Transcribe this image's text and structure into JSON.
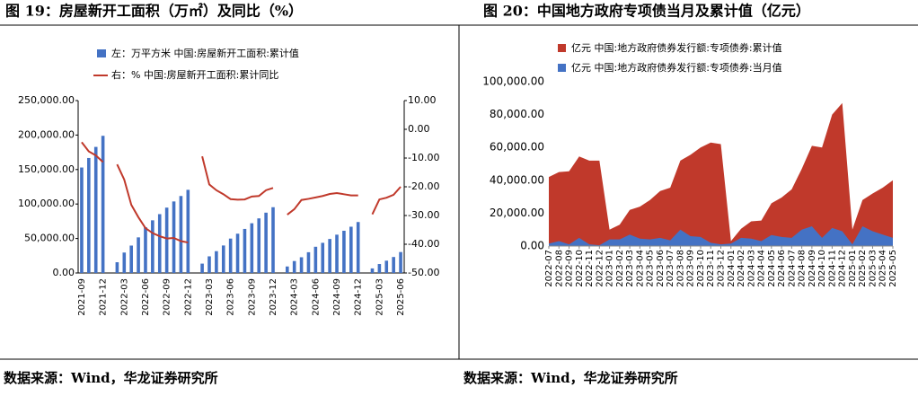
{
  "chart_data": [
    {
      "type": "bar",
      "title": "图 19：房屋新开工面积（万㎡）及同比（%）",
      "source": "数据来源：Wind，华龙证券研究所",
      "categories": [
        "2021-09",
        null,
        null,
        "2021-12",
        null,
        null,
        "2022-03",
        null,
        null,
        "2022-06",
        null,
        null,
        "2022-09",
        null,
        null,
        "2022-12",
        null,
        null,
        "2023-03",
        null,
        null,
        "2023-06",
        null,
        null,
        "2023-09",
        null,
        null,
        "2023-12",
        null,
        null,
        "2024-03",
        null,
        null,
        "2024-06",
        null,
        null,
        "2024-09",
        null,
        null,
        "2024-12",
        null,
        null,
        "2025-03",
        null,
        null,
        "2025-06"
      ],
      "series": [
        {
          "name": "左：万平方米 中国:房屋新开工面积:累计值",
          "color": "#4472c4",
          "type": "bar",
          "values": [
            152944,
            166736,
            182820,
            198895,
            null,
            15586,
            29638,
            39739,
            51628,
            66423,
            76366,
            85325,
            94767,
            103722,
            111632,
            120587,
            null,
            13567,
            24121,
            31636,
            39880,
            49880,
            56969,
            63891,
            72123,
            79177,
            87456,
            95376,
            null,
            9429,
            17329,
            22811,
            30090,
            38023,
            43731,
            49305,
            55550,
            61227,
            67086,
            73893,
            null,
            6628,
            12996,
            17836,
            23184,
            30364
          ]
        },
        {
          "name": "右：% 中国:房屋新开工面积:累计同比",
          "color": "#c0392b",
          "type": "line",
          "axis": "y2",
          "values": [
            -4.5,
            -7.7,
            -9.1,
            -11.4,
            null,
            -12.2,
            -17.5,
            -26.3,
            -30.6,
            -34.4,
            -36.1,
            -37.2,
            -38.0,
            -37.8,
            -38.9,
            -39.4,
            null,
            -9.4,
            -19.2,
            -21.2,
            -22.6,
            -24.3,
            -24.5,
            -24.4,
            -23.4,
            -23.2,
            -21.2,
            -20.4,
            null,
            -29.7,
            -27.8,
            -24.6,
            -24.2,
            -23.7,
            -23.2,
            -22.5,
            -22.2,
            -22.6,
            -23.0,
            -23.0,
            null,
            -29.6,
            -24.4,
            -23.8,
            -22.8,
            -20.0
          ]
        }
      ],
      "ylim": [
        0,
        250000
      ],
      "yticks": [
        {
          "value": 0,
          "label": "0.00"
        },
        {
          "value": 50000,
          "label": "50,000.00"
        },
        {
          "value": 100000,
          "label": "100,000.00"
        },
        {
          "value": 150000,
          "label": "150,000.00"
        },
        {
          "value": 200000,
          "label": "200,000.00"
        },
        {
          "value": 250000,
          "label": "250,000.00"
        }
      ],
      "y2lim": [
        -50,
        10
      ],
      "y2ticks": [
        {
          "value": -50,
          "label": "-50.00"
        },
        {
          "value": -40,
          "label": "-40.00"
        },
        {
          "value": -30,
          "label": "-30.00"
        },
        {
          "value": -20,
          "label": "-20.00"
        },
        {
          "value": -10,
          "label": "-10.00"
        },
        {
          "value": 0,
          "label": "0.00"
        },
        {
          "value": 10,
          "label": "10.00"
        }
      ]
    },
    {
      "type": "area",
      "title": "图 20：中国地方政府专项债当月及累计值（亿元）",
      "source": "数据来源：Wind，华龙证券研究所",
      "categories": [
        "2022-07",
        "2022-08",
        "2022-09",
        "2022-10",
        "2022-11",
        "2022-12",
        "2023-01",
        "2023-02",
        "2023-03",
        "2023-04",
        "2023-05",
        "2023-06",
        "2023-07",
        "2023-08",
        "2023-09",
        "2023-10",
        "2023-11",
        "2023-12",
        "2024-01",
        "2024-02",
        "2024-03",
        "2024-04",
        "2024-05",
        "2024-06",
        "2024-07",
        "2024-08",
        "2024-09",
        "2024-10",
        "2024-11",
        "2024-12",
        "2025-01",
        "2025-02",
        "2025-03",
        "2025-04",
        "2025-05"
      ],
      "series": [
        {
          "name": "亿元 中国:地方政府债券发行额:专项债券:累计值",
          "color": "#c0392b",
          "values": [
            42000,
            45000,
            45500,
            54500,
            52000,
            52000,
            10000,
            13000,
            22000,
            24000,
            28000,
            33500,
            35500,
            52000,
            55500,
            60000,
            63000,
            62000,
            3000,
            10500,
            15000,
            15500,
            26000,
            29500,
            34500,
            47000,
            61000,
            60000,
            80000,
            87000,
            10000,
            28000,
            32000,
            35500,
            40000
          ]
        },
        {
          "name": "亿元 中国:地方政府债券发行额:专项债券:当月值",
          "color": "#4472c4",
          "values": [
            1500,
            3000,
            1000,
            5000,
            1000,
            500,
            4000,
            4000,
            7000,
            4500,
            4000,
            5000,
            3500,
            10000,
            6000,
            5500,
            2000,
            1000,
            1500,
            5000,
            4500,
            3000,
            6700,
            5500,
            5000,
            10000,
            12000,
            5000,
            11000,
            9000,
            1000,
            12000,
            9000,
            7000,
            5000
          ]
        }
      ],
      "ylim": [
        0,
        100000
      ],
      "yticks": [
        {
          "value": 0,
          "label": "0.00"
        },
        {
          "value": 20000,
          "label": "20,000.00"
        },
        {
          "value": 40000,
          "label": "40,000.00"
        },
        {
          "value": 60000,
          "label": "60,000.00"
        },
        {
          "value": 80000,
          "label": "80,000.00"
        },
        {
          "value": 100000,
          "label": "100,000.00"
        }
      ]
    }
  ]
}
